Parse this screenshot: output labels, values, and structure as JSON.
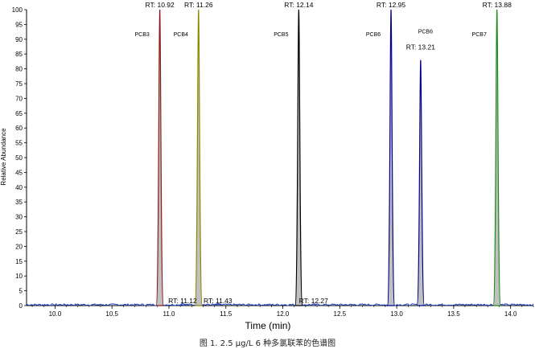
{
  "caption": "图 1. 2.5 µg/L 6 种多氯联苯的色谱图",
  "chart_data": {
    "type": "line",
    "title": "",
    "xlabel": "Time (min)",
    "ylabel": "Relative Abundance",
    "xlim": [
      9.75,
      14.2
    ],
    "ylim": [
      0,
      100
    ],
    "xticks": [
      "10.0",
      "10.5",
      "11.0",
      "11.5",
      "12.0",
      "12.5",
      "13.0",
      "13.5",
      "14.0"
    ],
    "xtick_values": [
      10.0,
      10.5,
      11.0,
      11.5,
      12.0,
      12.5,
      13.0,
      13.5,
      14.0
    ],
    "yticks": [
      "0",
      "5",
      "10",
      "15",
      "20",
      "25",
      "30",
      "35",
      "40",
      "45",
      "50",
      "55",
      "60",
      "65",
      "70",
      "75",
      "80",
      "85",
      "90",
      "95",
      "100"
    ],
    "ytick_values": [
      0,
      5,
      10,
      15,
      20,
      25,
      30,
      35,
      40,
      45,
      50,
      55,
      60,
      65,
      70,
      75,
      80,
      85,
      90,
      95,
      100
    ],
    "grid": false,
    "series": [
      {
        "rt": 10.92,
        "height": 100,
        "color": "#8b1a1a",
        "rt_label": "RT: 10.92",
        "name_label": "PCB3"
      },
      {
        "rt": 11.26,
        "height": 100,
        "color": "#8a8a00",
        "rt_label": "RT: 11.26",
        "name_label": "PCB4"
      },
      {
        "rt": 12.14,
        "height": 100,
        "color": "#000000",
        "rt_label": "RT: 12.14",
        "name_label": "PCB5"
      },
      {
        "rt": 12.95,
        "height": 100,
        "color": "#00008b",
        "rt_label": "RT: 12.95",
        "name_label": "PCB6"
      },
      {
        "rt": 13.21,
        "height": 83,
        "color": "#00008b",
        "rt_label": "RT: 13.21",
        "name_label": "PCB6"
      },
      {
        "rt": 13.88,
        "height": 100,
        "color": "#1a8a1a",
        "rt_label": "RT: 13.88",
        "name_label": "PCB7"
      }
    ],
    "minor_peaks": [
      {
        "rt": 11.12,
        "height": 0.8,
        "rt_label": "RT: 11.12"
      },
      {
        "rt": 11.43,
        "height": 0.8,
        "rt_label": "RT: 11.43"
      },
      {
        "rt": 12.27,
        "height": 0.6,
        "rt_label": "RT: 12.27"
      }
    ]
  }
}
